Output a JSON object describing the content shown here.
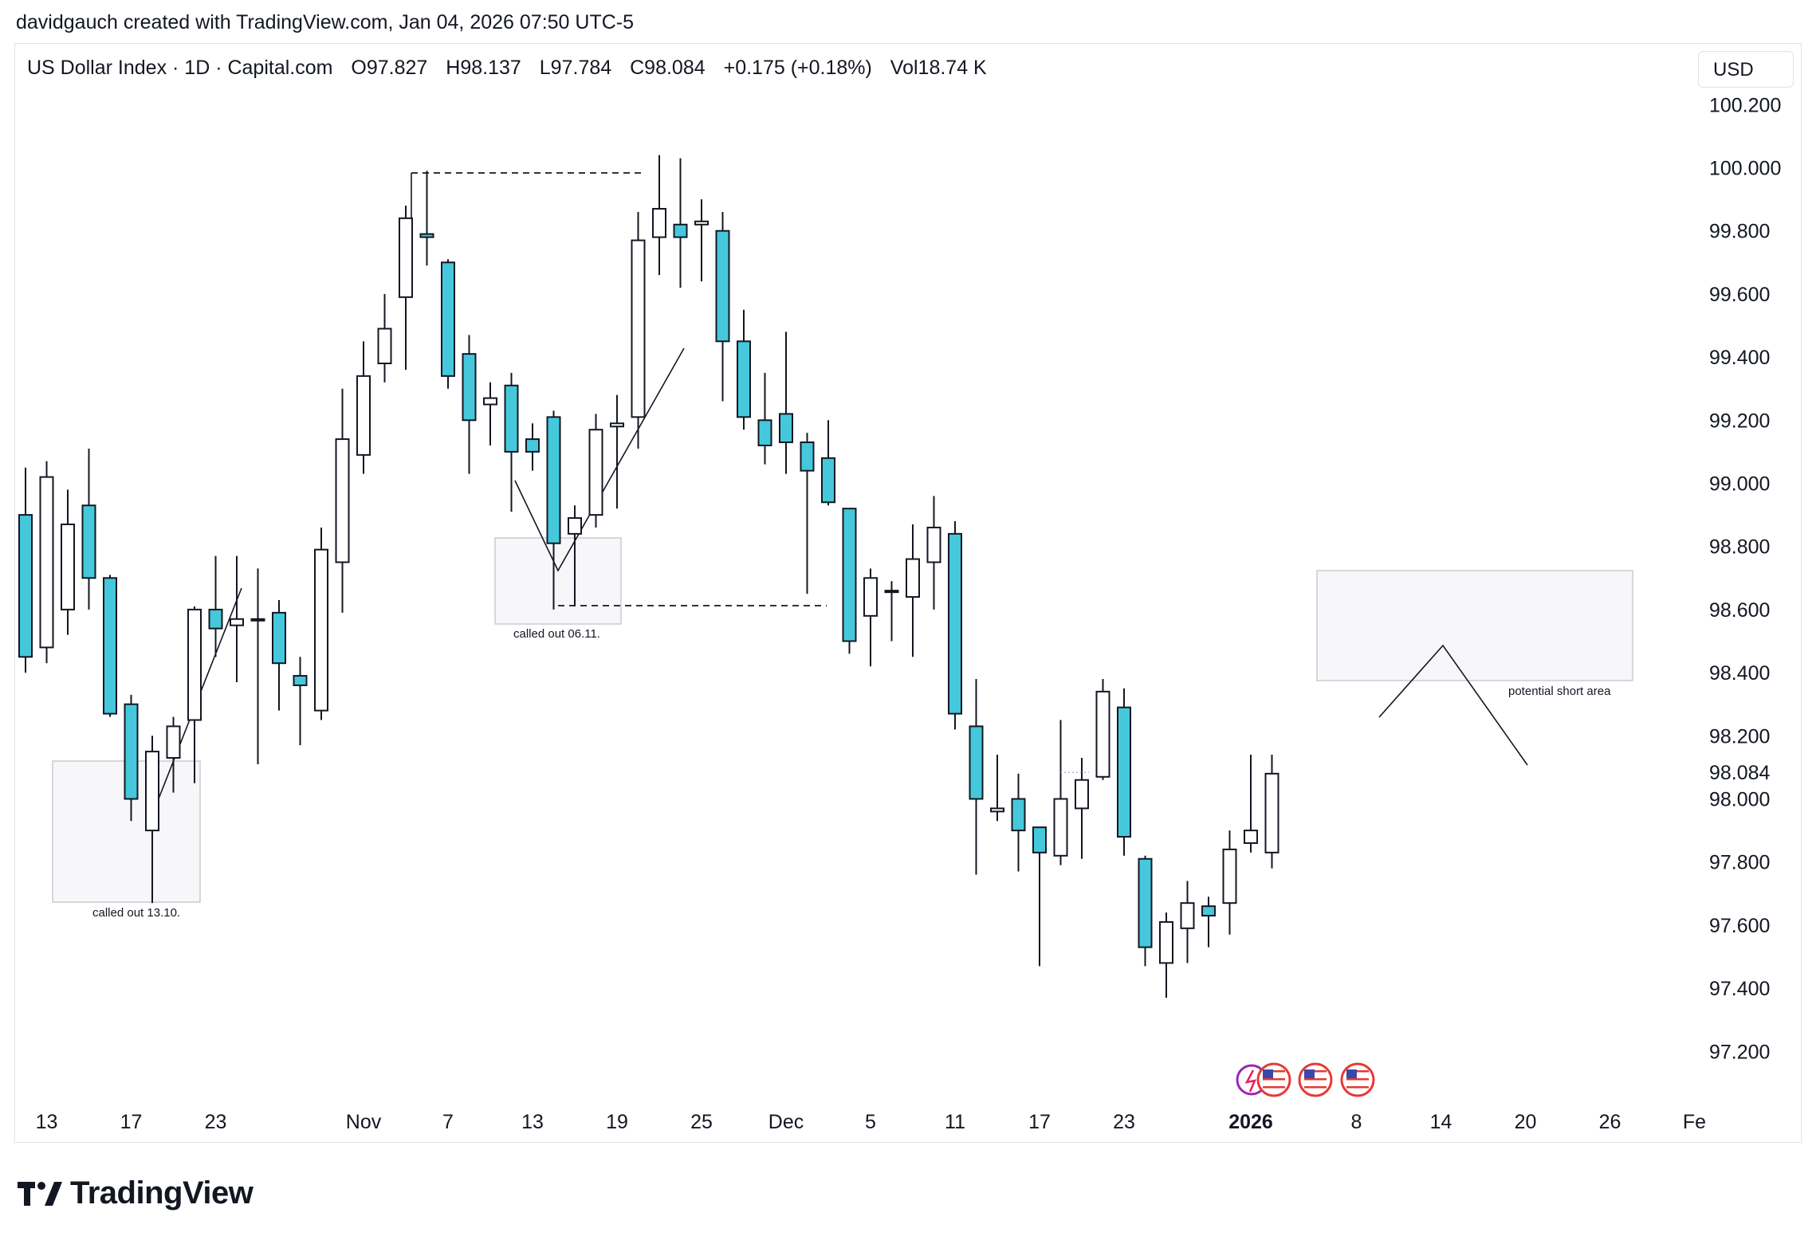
{
  "caption": "davidgauch created with TradingView.com, Jan 04, 2026 07:50 UTC-5",
  "header": {
    "symbol": "US Dollar Index · 1D · Capital.com",
    "open": "O97.827",
    "high": "H98.137",
    "low": "L97.784",
    "close": "C98.084",
    "change": "+0.175 (+0.18%)",
    "volume": "Vol18.74 K"
  },
  "currency_button": "USD",
  "logo_text": "TradingView",
  "colors": {
    "bear": "#45c8dc",
    "bull": "#ffffff",
    "outline": "#131722",
    "zone_fill": "#f7f7f9",
    "zone_border": "#c9cbd1"
  },
  "chart_data": {
    "type": "candlestick",
    "title": "US Dollar Index · 1D · Capital.com",
    "ylim": [
      97.05,
      100.32
    ],
    "y_ticks": [
      100.2,
      100.0,
      99.8,
      99.6,
      99.4,
      99.2,
      99.0,
      98.8,
      98.6,
      98.4,
      98.2,
      98.0,
      97.8,
      97.6,
      97.4,
      97.2
    ],
    "y_tick_labels": [
      "100.200",
      "100.000",
      "99.800",
      "99.600",
      "99.400",
      "99.200",
      "99.000",
      "98.800",
      "98.600",
      "98.400",
      "98.200",
      "98.000",
      "97.800",
      "97.600",
      "97.400",
      "97.200"
    ],
    "last_price": 98.084,
    "last_price_label": "98.084",
    "x_ticks": [
      {
        "i": 1,
        "label": "13"
      },
      {
        "i": 5,
        "label": "17"
      },
      {
        "i": 9,
        "label": "23"
      },
      {
        "i": 16,
        "label": "Nov"
      },
      {
        "i": 20,
        "label": "7"
      },
      {
        "i": 24,
        "label": "13"
      },
      {
        "i": 28,
        "label": "19"
      },
      {
        "i": 32,
        "label": "25"
      },
      {
        "i": 36,
        "label": "Dec"
      },
      {
        "i": 40,
        "label": "5"
      },
      {
        "i": 44,
        "label": "11"
      },
      {
        "i": 48,
        "label": "17"
      },
      {
        "i": 52,
        "label": "23"
      },
      {
        "i": 58,
        "label": "2026",
        "bold": true
      },
      {
        "i": 63,
        "label": "8"
      },
      {
        "i": 67,
        "label": "14"
      },
      {
        "i": 71,
        "label": "20"
      },
      {
        "i": 75,
        "label": "26"
      },
      {
        "i": 79,
        "label": "Fe"
      }
    ],
    "candles": [
      {
        "o": 98.9,
        "h": 99.05,
        "l": 98.4,
        "c": 98.45
      },
      {
        "o": 98.48,
        "h": 99.07,
        "l": 98.43,
        "c": 99.02
      },
      {
        "o": 98.6,
        "h": 98.98,
        "l": 98.52,
        "c": 98.87
      },
      {
        "o": 98.93,
        "h": 99.11,
        "l": 98.6,
        "c": 98.7
      },
      {
        "o": 98.7,
        "h": 98.71,
        "l": 98.26,
        "c": 98.27
      },
      {
        "o": 98.3,
        "h": 98.33,
        "l": 97.93,
        "c": 98.0
      },
      {
        "o": 97.9,
        "h": 98.2,
        "l": 97.67,
        "c": 98.15
      },
      {
        "o": 98.13,
        "h": 98.26,
        "l": 98.02,
        "c": 98.23
      },
      {
        "o": 98.25,
        "h": 98.61,
        "l": 98.05,
        "c": 98.6
      },
      {
        "o": 98.6,
        "h": 98.77,
        "l": 98.45,
        "c": 98.54
      },
      {
        "o": 98.55,
        "h": 98.77,
        "l": 98.37,
        "c": 98.57
      },
      {
        "o": 98.57,
        "h": 98.73,
        "l": 98.11,
        "c": 98.57
      },
      {
        "o": 98.59,
        "h": 98.63,
        "l": 98.28,
        "c": 98.43
      },
      {
        "o": 98.39,
        "h": 98.45,
        "l": 98.17,
        "c": 98.36
      },
      {
        "o": 98.28,
        "h": 98.86,
        "l": 98.25,
        "c": 98.79
      },
      {
        "o": 98.75,
        "h": 99.3,
        "l": 98.59,
        "c": 99.14
      },
      {
        "o": 99.09,
        "h": 99.45,
        "l": 99.03,
        "c": 99.34
      },
      {
        "o": 99.38,
        "h": 99.6,
        "l": 99.32,
        "c": 99.49
      },
      {
        "o": 99.59,
        "h": 99.88,
        "l": 99.36,
        "c": 99.84
      },
      {
        "o": 99.79,
        "h": 99.99,
        "l": 99.69,
        "c": 99.78
      },
      {
        "o": 99.7,
        "h": 99.71,
        "l": 99.3,
        "c": 99.34
      },
      {
        "o": 99.41,
        "h": 99.47,
        "l": 99.03,
        "c": 99.2
      },
      {
        "o": 99.25,
        "h": 99.32,
        "l": 99.12,
        "c": 99.27
      },
      {
        "o": 99.31,
        "h": 99.35,
        "l": 98.91,
        "c": 99.1
      },
      {
        "o": 99.14,
        "h": 99.19,
        "l": 99.04,
        "c": 99.1
      },
      {
        "o": 99.21,
        "h": 99.23,
        "l": 98.6,
        "c": 98.81
      },
      {
        "o": 98.84,
        "h": 98.93,
        "l": 98.61,
        "c": 98.89
      },
      {
        "o": 98.9,
        "h": 99.22,
        "l": 98.86,
        "c": 99.17
      },
      {
        "o": 99.18,
        "h": 99.28,
        "l": 98.92,
        "c": 99.19
      },
      {
        "o": 99.21,
        "h": 99.86,
        "l": 99.11,
        "c": 99.77
      },
      {
        "o": 99.78,
        "h": 100.04,
        "l": 99.66,
        "c": 99.87
      },
      {
        "o": 99.82,
        "h": 100.03,
        "l": 99.62,
        "c": 99.78
      },
      {
        "o": 99.82,
        "h": 99.9,
        "l": 99.64,
        "c": 99.83
      },
      {
        "o": 99.8,
        "h": 99.86,
        "l": 99.26,
        "c": 99.45
      },
      {
        "o": 99.45,
        "h": 99.55,
        "l": 99.17,
        "c": 99.21
      },
      {
        "o": 99.2,
        "h": 99.35,
        "l": 99.06,
        "c": 99.12
      },
      {
        "o": 99.22,
        "h": 99.48,
        "l": 99.03,
        "c": 99.13
      },
      {
        "o": 99.13,
        "h": 99.16,
        "l": 98.65,
        "c": 99.04
      },
      {
        "o": 99.08,
        "h": 99.2,
        "l": 98.93,
        "c": 98.94
      },
      {
        "o": 98.92,
        "h": 98.92,
        "l": 98.46,
        "c": 98.5
      },
      {
        "o": 98.58,
        "h": 98.73,
        "l": 98.42,
        "c": 98.7
      },
      {
        "o": 98.66,
        "h": 98.69,
        "l": 98.5,
        "c": 98.66
      },
      {
        "o": 98.64,
        "h": 98.87,
        "l": 98.45,
        "c": 98.76
      },
      {
        "o": 98.75,
        "h": 98.96,
        "l": 98.6,
        "c": 98.86
      },
      {
        "o": 98.84,
        "h": 98.88,
        "l": 98.22,
        "c": 98.27
      },
      {
        "o": 98.23,
        "h": 98.38,
        "l": 97.76,
        "c": 98.0
      },
      {
        "o": 97.96,
        "h": 98.14,
        "l": 97.93,
        "c": 97.97
      },
      {
        "o": 98.0,
        "h": 98.08,
        "l": 97.77,
        "c": 97.9
      },
      {
        "o": 97.91,
        "h": 97.91,
        "l": 97.47,
        "c": 97.83
      },
      {
        "o": 97.82,
        "h": 98.25,
        "l": 97.79,
        "c": 98.0
      },
      {
        "o": 97.97,
        "h": 98.13,
        "l": 97.81,
        "c": 98.06
      },
      {
        "o": 98.07,
        "h": 98.38,
        "l": 98.06,
        "c": 98.34
      },
      {
        "o": 98.29,
        "h": 98.35,
        "l": 97.82,
        "c": 97.88
      },
      {
        "o": 97.81,
        "h": 97.82,
        "l": 97.47,
        "c": 97.53
      },
      {
        "o": 97.48,
        "h": 97.64,
        "l": 97.37,
        "c": 97.61
      },
      {
        "o": 97.59,
        "h": 97.74,
        "l": 97.48,
        "c": 97.67
      },
      {
        "o": 97.66,
        "h": 97.69,
        "l": 97.53,
        "c": 97.63
      },
      {
        "o": 97.67,
        "h": 97.9,
        "l": 97.57,
        "c": 97.84
      },
      {
        "o": 97.86,
        "h": 98.14,
        "l": 97.83,
        "c": 97.9
      },
      {
        "o": 97.83,
        "h": 98.14,
        "l": 97.78,
        "c": 98.08
      }
    ],
    "annotations": [
      {
        "type": "zone",
        "label": "called out 13.10."
      },
      {
        "type": "zone",
        "label": "called out 06.11."
      },
      {
        "type": "zone",
        "label": "potential short area"
      }
    ]
  }
}
